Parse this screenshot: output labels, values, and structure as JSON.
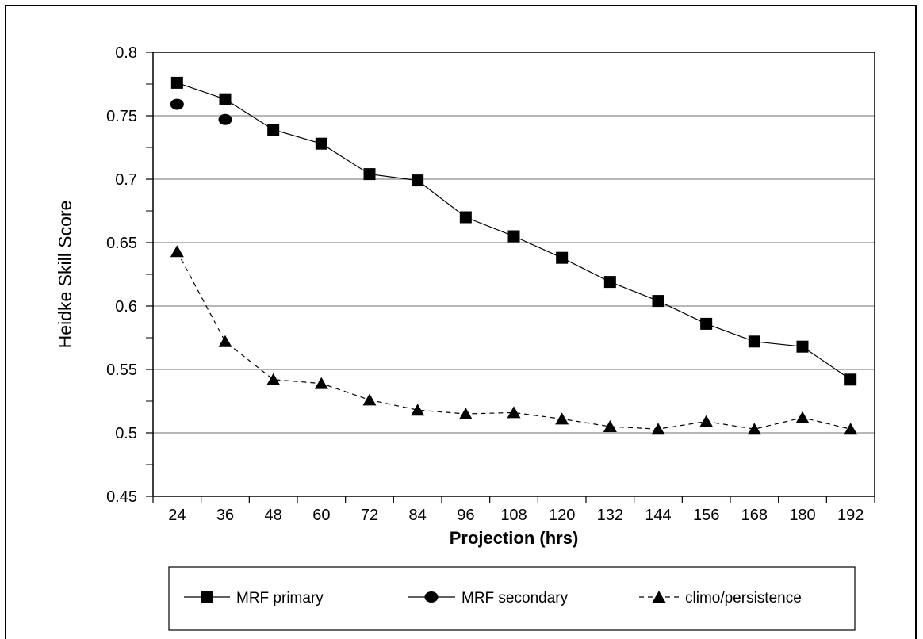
{
  "chart_data": {
    "type": "line",
    "title": "",
    "xlabel": "Projection (hrs)",
    "ylabel": "Heidke Skill Score",
    "ylim": [
      0.45,
      0.8
    ],
    "yticks": [
      "0.45",
      "0.5",
      "0.55",
      "0.6",
      "0.65",
      "0.7",
      "0.75",
      "0.8"
    ],
    "yticks_values": [
      0.45,
      0.5,
      0.55,
      0.6,
      0.65,
      0.7,
      0.75,
      0.8
    ],
    "categories": [
      "24",
      "36",
      "48",
      "60",
      "72",
      "84",
      "96",
      "108",
      "120",
      "132",
      "144",
      "156",
      "168",
      "180",
      "192"
    ],
    "grid": "horizontal",
    "legend_position": "bottom",
    "series": [
      {
        "name": "MRF primary",
        "marker": "square",
        "line": "solid",
        "color": "#000000",
        "values": [
          0.776,
          0.763,
          0.739,
          0.728,
          0.704,
          0.699,
          0.67,
          0.655,
          0.638,
          0.619,
          0.604,
          0.586,
          0.572,
          0.568,
          0.542
        ]
      },
      {
        "name": "MRF secondary",
        "marker": "circle",
        "line": "solid",
        "color": "#000000",
        "values": [
          0.759,
          0.747,
          null,
          null,
          null,
          null,
          null,
          null,
          null,
          null,
          null,
          null,
          null,
          null,
          null
        ]
      },
      {
        "name": "climo/persistence",
        "marker": "triangle",
        "line": "dashed",
        "color": "#000000",
        "values": [
          0.643,
          0.572,
          0.542,
          0.539,
          0.526,
          0.518,
          0.515,
          0.516,
          0.511,
          0.505,
          0.503,
          0.509,
          0.503,
          0.512,
          0.503
        ]
      }
    ]
  }
}
